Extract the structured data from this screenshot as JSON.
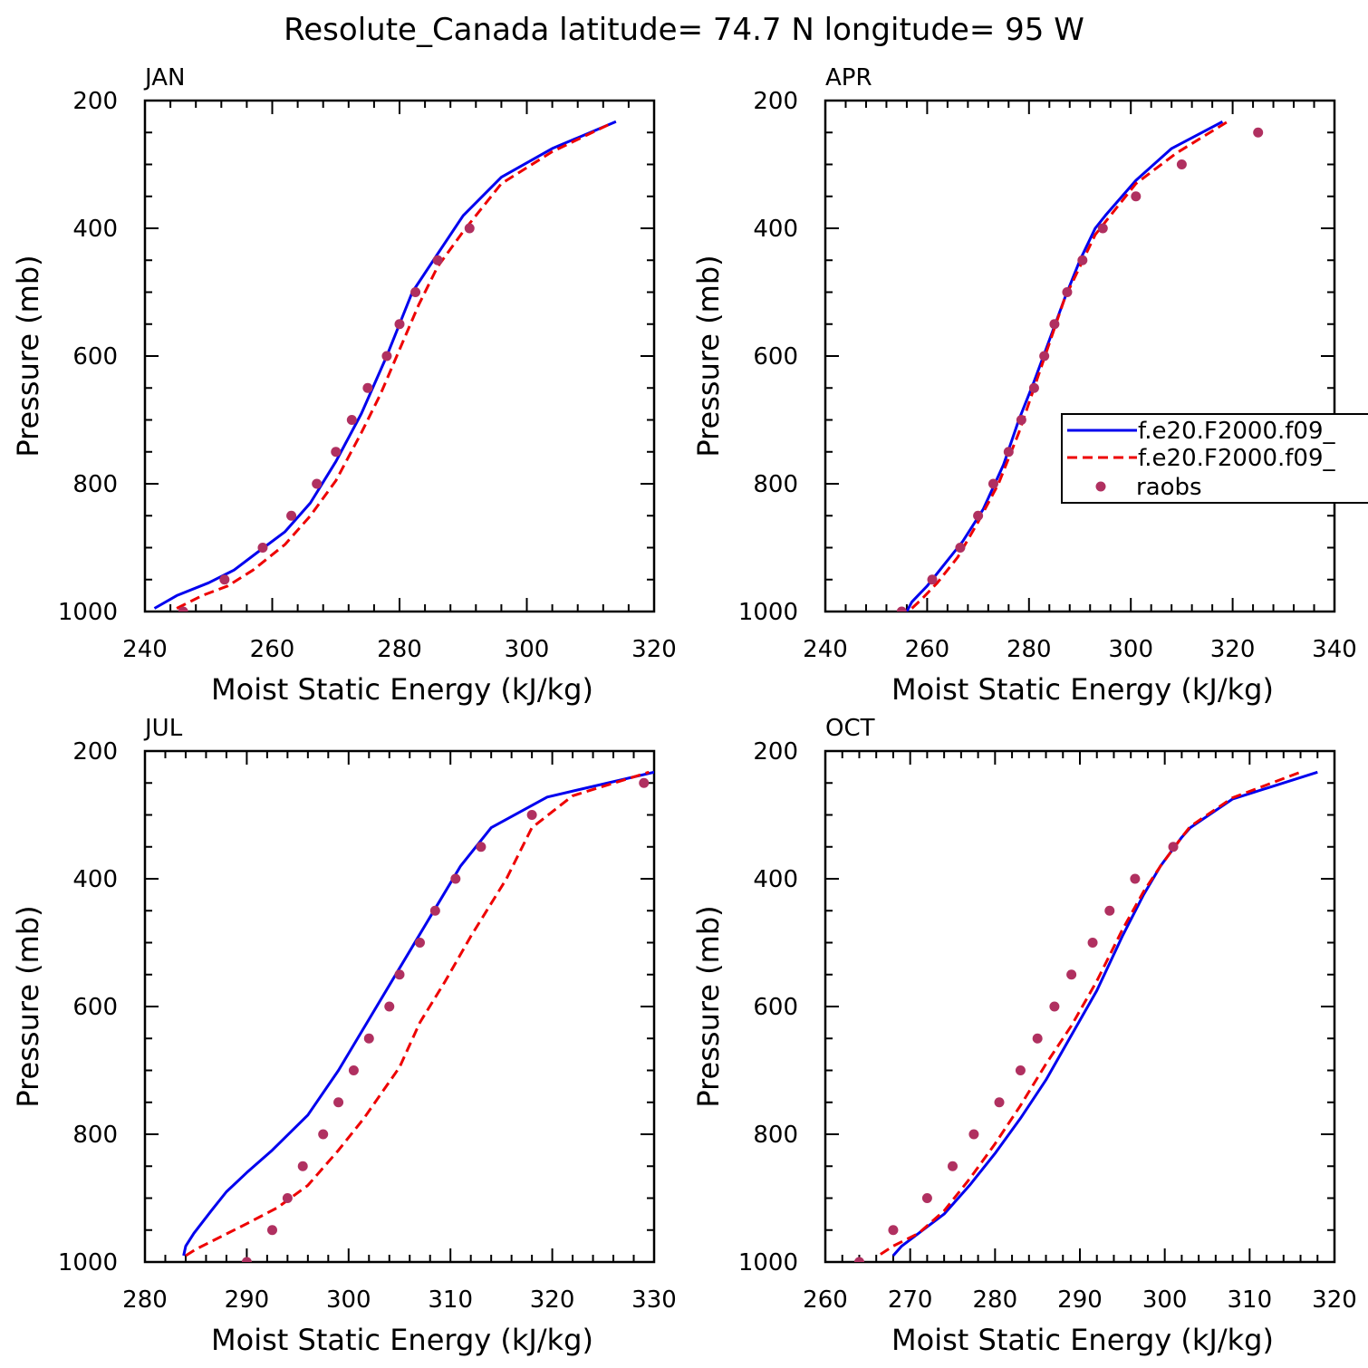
{
  "figure_title": "Resolute_Canada  latitude= 74.7 N longitude= 95 W",
  "colors": {
    "model1": "#0000ee",
    "model2": "#ee0000",
    "obs": "#b03060"
  },
  "legend": {
    "entries": [
      {
        "label": "f.e20.F2000.f09_",
        "style": "solid",
        "color": "#0000ee"
      },
      {
        "label": "f.e20.F2000.f09_",
        "style": "dashed",
        "color": "#ee0000"
      },
      {
        "label": "raobs",
        "style": "marker",
        "color": "#b03060"
      }
    ]
  },
  "chart_data": [
    {
      "type": "line",
      "title": "JAN",
      "xlabel": "Moist Static Energy (kJ/kg)",
      "ylabel": "Pressure (mb)",
      "xlim": [
        240,
        320
      ],
      "ylim": [
        1000,
        200
      ],
      "xticks": [
        240,
        260,
        280,
        300,
        320
      ],
      "yticks": [
        200,
        400,
        600,
        800,
        1000
      ],
      "grid": false,
      "series": [
        {
          "name": "f.e20.F2000.f09_",
          "style": "solid",
          "points": [
            [
              241.5,
              995
            ],
            [
              245,
              975
            ],
            [
              250,
              955
            ],
            [
              254,
              935
            ],
            [
              258,
              905
            ],
            [
              262,
              875
            ],
            [
              266,
              830
            ],
            [
              270,
              765
            ],
            [
              274,
              690
            ],
            [
              278,
              600
            ],
            [
              282,
              500
            ],
            [
              286,
              440
            ],
            [
              290,
              380
            ],
            [
              296,
              320
            ],
            [
              304,
              275
            ],
            [
              314,
              233
            ]
          ]
        },
        {
          "name": "f.e20.F2000.f09_",
          "style": "dashed",
          "points": [
            [
              245,
              995
            ],
            [
              249,
              975
            ],
            [
              253,
              960
            ],
            [
              257,
              935
            ],
            [
              262,
              895
            ],
            [
              266,
              850
            ],
            [
              270,
              795
            ],
            [
              274,
              720
            ],
            [
              277,
              660
            ],
            [
              280,
              590
            ],
            [
              283,
              520
            ],
            [
              286,
              460
            ],
            [
              290,
              405
            ],
            [
              296,
              330
            ],
            [
              304,
              280
            ],
            [
              313,
              237
            ]
          ]
        },
        {
          "name": "raobs",
          "style": "marker",
          "points": [
            [
              246,
              1000
            ],
            [
              252.5,
              950
            ],
            [
              258.5,
              900
            ],
            [
              263,
              850
            ],
            [
              267,
              800
            ],
            [
              270,
              750
            ],
            [
              272.5,
              700
            ],
            [
              275,
              650
            ],
            [
              278,
              600
            ],
            [
              280,
              550
            ],
            [
              282.5,
              500
            ],
            [
              286,
              450
            ],
            [
              291,
              400
            ]
          ]
        }
      ]
    },
    {
      "type": "line",
      "title": "APR",
      "xlabel": "Moist Static Energy (kJ/kg)",
      "ylabel": "Pressure (mb)",
      "xlim": [
        240,
        340
      ],
      "ylim": [
        1000,
        200
      ],
      "xticks": [
        240,
        260,
        280,
        300,
        320,
        340
      ],
      "yticks": [
        200,
        400,
        600,
        800,
        1000
      ],
      "grid": false,
      "series": [
        {
          "name": "f.e20.F2000.f09_",
          "style": "solid",
          "points": [
            [
              256,
              1000
            ],
            [
              257,
              985
            ],
            [
              260,
              960
            ],
            [
              263,
              930
            ],
            [
              267,
              890
            ],
            [
              271,
              840
            ],
            [
              275,
              770
            ],
            [
              278,
              700
            ],
            [
              281,
              640
            ],
            [
              284,
              575
            ],
            [
              287,
              510
            ],
            [
              290,
              450
            ],
            [
              293,
              400
            ],
            [
              295,
              380
            ],
            [
              301,
              325
            ],
            [
              308,
              275
            ],
            [
              318,
              233
            ]
          ]
        },
        {
          "name": "f.e20.F2000.f09_",
          "style": "dashed",
          "points": [
            [
              257,
              995
            ],
            [
              259,
              980
            ],
            [
              262,
              955
            ],
            [
              266,
              915
            ],
            [
              270,
              860
            ],
            [
              274,
              800
            ],
            [
              278,
              720
            ],
            [
              281,
              650
            ],
            [
              284,
              580
            ],
            [
              287,
              510
            ],
            [
              290,
              460
            ],
            [
              293,
              410
            ],
            [
              295,
              390
            ],
            [
              301,
              330
            ],
            [
              309,
              282
            ],
            [
              319,
              233
            ]
          ]
        },
        {
          "name": "raobs",
          "style": "marker",
          "points": [
            [
              255,
              1000
            ],
            [
              261,
              950
            ],
            [
              266.5,
              900
            ],
            [
              270,
              850
            ],
            [
              273,
              800
            ],
            [
              276,
              750
            ],
            [
              278.5,
              700
            ],
            [
              281,
              650
            ],
            [
              283,
              600
            ],
            [
              285,
              550
            ],
            [
              287.5,
              500
            ],
            [
              290.5,
              450
            ],
            [
              294.5,
              400
            ],
            [
              301,
              350
            ],
            [
              310,
              300
            ],
            [
              325,
              250
            ]
          ]
        }
      ]
    },
    {
      "type": "line",
      "title": "JUL",
      "xlabel": "Moist Static Energy (kJ/kg)",
      "ylabel": "Pressure (mb)",
      "xlim": [
        280,
        330
      ],
      "ylim": [
        1000,
        200
      ],
      "xticks": [
        280,
        290,
        300,
        310,
        320,
        330
      ],
      "yticks": [
        200,
        400,
        600,
        800,
        1000
      ],
      "grid": false,
      "series": [
        {
          "name": "f.e20.F2000.f09_",
          "style": "solid",
          "points": [
            [
              283.8,
              990
            ],
            [
              284,
              975
            ],
            [
              284.8,
              955
            ],
            [
              286.5,
              920
            ],
            [
              288,
              890
            ],
            [
              290,
              860
            ],
            [
              292.5,
              825
            ],
            [
              296,
              770
            ],
            [
              299,
              700
            ],
            [
              302,
              620
            ],
            [
              305,
              540
            ],
            [
              308,
              460
            ],
            [
              311,
              380
            ],
            [
              314,
              320
            ],
            [
              319.5,
              272
            ],
            [
              330,
              233
            ]
          ]
        },
        {
          "name": "f.e20.F2000.f09_",
          "style": "dashed",
          "points": [
            [
              284,
              990
            ],
            [
              285,
              980
            ],
            [
              287.5,
              960
            ],
            [
              290,
              940
            ],
            [
              293,
              915
            ],
            [
              296,
              880
            ],
            [
              299,
              825
            ],
            [
              301.5,
              775
            ],
            [
              305,
              695
            ],
            [
              307,
              625
            ],
            [
              309.5,
              560
            ],
            [
              312,
              490
            ],
            [
              315.5,
              400
            ],
            [
              318,
              320
            ],
            [
              322,
              270
            ],
            [
              329.5,
              233
            ]
          ]
        },
        {
          "name": "raobs",
          "style": "marker",
          "points": [
            [
              290,
              1000
            ],
            [
              292.5,
              950
            ],
            [
              294,
              900
            ],
            [
              295.5,
              850
            ],
            [
              297.5,
              800
            ],
            [
              299,
              750
            ],
            [
              300.5,
              700
            ],
            [
              302,
              650
            ],
            [
              304,
              600
            ],
            [
              305,
              550
            ],
            [
              307,
              500
            ],
            [
              308.5,
              450
            ],
            [
              310.5,
              400
            ],
            [
              313,
              350
            ],
            [
              318,
              300
            ],
            [
              329,
              250
            ]
          ]
        }
      ]
    },
    {
      "type": "line",
      "title": "OCT",
      "xlabel": "Moist Static Energy (kJ/kg)",
      "ylabel": "Pressure (mb)",
      "xlim": [
        260,
        320
      ],
      "ylim": [
        1000,
        200
      ],
      "xticks": [
        260,
        270,
        280,
        290,
        300,
        310,
        320
      ],
      "yticks": [
        200,
        400,
        600,
        800,
        1000
      ],
      "grid": false,
      "series": [
        {
          "name": "f.e20.F2000.f09_",
          "style": "solid",
          "points": [
            [
              268,
              990
            ],
            [
              269,
              975
            ],
            [
              271,
              955
            ],
            [
              274,
              925
            ],
            [
              277,
              880
            ],
            [
              280,
              830
            ],
            [
              283,
              775
            ],
            [
              286,
              715
            ],
            [
              289,
              645
            ],
            [
              292,
              575
            ],
            [
              295,
              490
            ],
            [
              297.5,
              425
            ],
            [
              299.5,
              380
            ],
            [
              302,
              335
            ],
            [
              303,
              320
            ],
            [
              308,
              275
            ],
            [
              318,
              233
            ]
          ]
        },
        {
          "name": "f.e20.F2000.f09_",
          "style": "dashed",
          "points": [
            [
              266.5,
              988
            ],
            [
              268,
              975
            ],
            [
              271,
              955
            ],
            [
              274,
              920
            ],
            [
              277,
              870
            ],
            [
              280,
              815
            ],
            [
              283,
              755
            ],
            [
              286,
              690
            ],
            [
              289,
              630
            ],
            [
              292,
              560
            ],
            [
              295,
              480
            ],
            [
              297.5,
              420
            ],
            [
              299.5,
              380
            ],
            [
              302,
              335
            ],
            [
              303,
              318
            ],
            [
              308,
              273
            ],
            [
              316,
              233
            ]
          ]
        },
        {
          "name": "raobs",
          "style": "marker",
          "points": [
            [
              264,
              1000
            ],
            [
              268,
              950
            ],
            [
              272,
              900
            ],
            [
              275,
              850
            ],
            [
              277.5,
              800
            ],
            [
              280.5,
              750
            ],
            [
              283,
              700
            ],
            [
              285,
              650
            ],
            [
              287,
              600
            ],
            [
              289,
              550
            ],
            [
              291.5,
              500
            ],
            [
              293.5,
              450
            ],
            [
              296.5,
              400
            ],
            [
              301,
              350
            ]
          ]
        }
      ]
    }
  ]
}
